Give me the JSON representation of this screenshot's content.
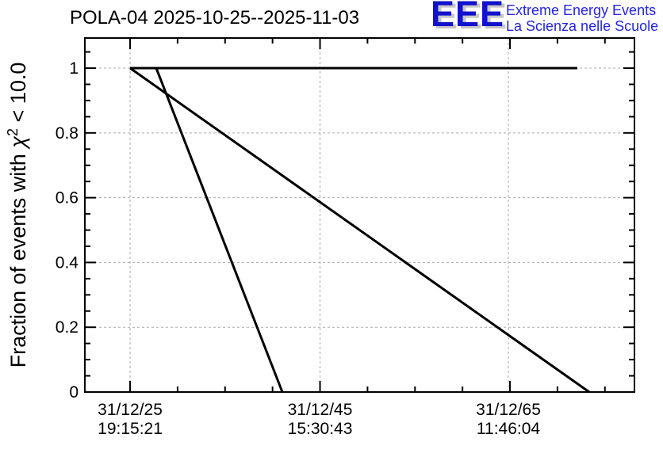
{
  "header": {
    "title": "POLA-04 2025-10-25--2025-11-03",
    "logo": {
      "acronym": "EEE",
      "tagline_line1": "Extreme Energy Events",
      "tagline_line2": "La Scienza nelle Scuole",
      "acronym_color": "#1212cc",
      "tagline_color": "#2525e0",
      "shadow_color": "#c6c6c6"
    }
  },
  "y_axis": {
    "title_prefix": "Fraction of events with ",
    "title_chi": "χ",
    "title_sup": "2",
    "title_suffix": " < 10.0"
  },
  "chart_data": {
    "type": "line",
    "title": "POLA-04 2025-10-25--2025-11-03",
    "xlabel": "",
    "ylabel": "Fraction of events with χ² < 10.0",
    "ylim": [
      0,
      1.093
    ],
    "y_ticks": [
      0,
      0.2,
      0.4,
      0.6,
      0.8,
      1
    ],
    "y_tick_labels": [
      "0",
      "0.2",
      "0.4",
      "0.6",
      "0.8",
      "1"
    ],
    "y_minor_step": 0.05,
    "x_axis_type": "datetime",
    "x_unit_note": "x positions given as fraction of plot frame width (0 = left frame edge, 1 = right frame edge)",
    "x_ticks": [
      {
        "pos": 0.0823,
        "date": "31/12/25",
        "time": "19:15:21"
      },
      {
        "pos": 0.4279,
        "date": "31/12/45",
        "time": "15:30:43"
      },
      {
        "pos": 0.7706,
        "date": "31/12/65",
        "time": "11:46:04"
      }
    ],
    "x_minor_per_major": 4,
    "grid": "dashed gray lines at major ticks, both axes",
    "legend": "none",
    "series": [
      {
        "name": "fraction-flat-at-1",
        "points": [
          [
            0.0823,
            1.0
          ],
          [
            0.896,
            1.0
          ]
        ]
      },
      {
        "name": "fraction-long-decline",
        "points": [
          [
            0.0823,
            1.0
          ],
          [
            0.9177,
            0.0
          ]
        ]
      },
      {
        "name": "fraction-steep-decline",
        "points": [
          [
            0.1299,
            1.0
          ],
          [
            0.3593,
            0.0
          ]
        ]
      }
    ],
    "series_color": "#000000",
    "grid_color": "#aaaaaa",
    "frame_color": "#000000"
  }
}
